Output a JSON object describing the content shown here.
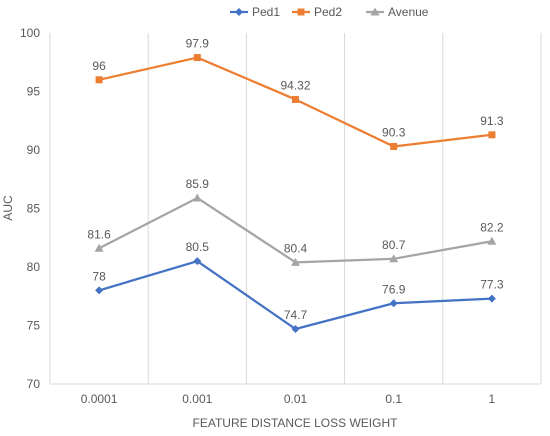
{
  "chart_data": {
    "type": "line",
    "title": "",
    "xlabel": "FEATURE DISTANCE LOSS WEIGHT",
    "ylabel": "AUC",
    "categories": [
      "0.0001",
      "0.001",
      "0.01",
      "0.1",
      "1"
    ],
    "ylim": [
      70,
      100
    ],
    "yticks": [
      "70",
      "75",
      "80",
      "85",
      "90",
      "95",
      "100"
    ],
    "grid": "vertical",
    "legend_position": "top",
    "series": [
      {
        "name": "Ped1",
        "color": "#4472c4",
        "marker": "diamond",
        "values": [
          78,
          80.5,
          74.7,
          76.9,
          77.3
        ],
        "labels": [
          "78",
          "80.5",
          "74.7",
          "76.9",
          "77.3"
        ]
      },
      {
        "name": "Ped2",
        "color": "#ed7d31",
        "marker": "square",
        "values": [
          96,
          97.9,
          94.32,
          90.3,
          91.3
        ],
        "labels": [
          "96",
          "97.9",
          "94.32",
          "90.3",
          "91.3"
        ]
      },
      {
        "name": "Avenue",
        "color": "#a5a5a5",
        "marker": "triangle",
        "values": [
          81.6,
          85.9,
          80.4,
          80.7,
          82.2
        ],
        "labels": [
          "81.6",
          "85.9",
          "80.4",
          "80.7",
          "82.2"
        ]
      }
    ]
  }
}
